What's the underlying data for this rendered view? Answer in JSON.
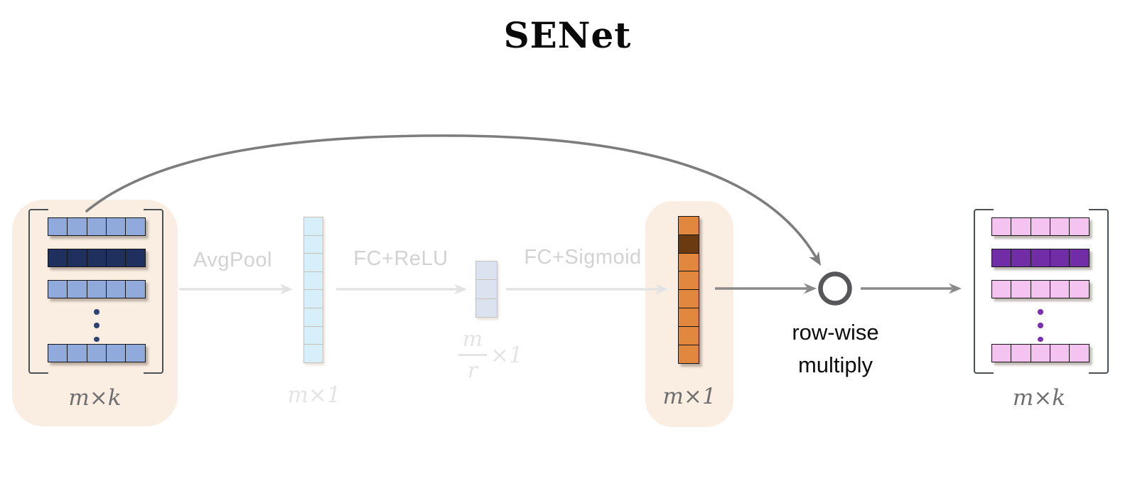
{
  "title": "SENet",
  "labels": {
    "avgpool": "AvgPool",
    "fc_relu": "FC+ReLU",
    "fc_sigmoid": "FC+Sigmoid",
    "input_dims": "m×k",
    "pooled_dims": "m×1",
    "bottleneck_numerator": "m",
    "bottleneck_denominator": "r",
    "bottleneck_suffix": "×1",
    "attention_dims": "m×1",
    "output_dims": "m×k",
    "multiply_line1": "row-wise",
    "multiply_line2": "multiply"
  },
  "colors": {
    "highlight_bg": "#faeee2",
    "input_row_light": "#91aadc",
    "input_row_dark": "#1f305f",
    "input_dots": "#2e4372",
    "pooled_cell": "#d6effa",
    "bottleneck_cell": "#dbe3f1",
    "attention_cell": "#e1873e",
    "attention_cell_dark": "#6b3a10",
    "output_row_light": "#f4c3f0",
    "output_row_dark": "#702da5",
    "output_dots": "#7b30ad",
    "active_arrow": "#8a8a8a",
    "skip_arrow": "#7d7d7d",
    "node_ring": "#57575a",
    "node_fill": "#ffffff",
    "faded_arrow": "#e2e2e2",
    "faded_text": "#d2d2d2",
    "faded_dim_label": "#e4e4e4",
    "dim_label": "#6f6f6f",
    "bracket": "#4b5055"
  },
  "input_matrix": {
    "rows": [
      "light",
      "dark",
      "light",
      "dots",
      "light"
    ],
    "cols": 5,
    "palette": {
      "light": "input_row_light",
      "dark": "input_row_dark",
      "dots": "input_dots"
    }
  },
  "output_matrix": {
    "rows": [
      "light",
      "dark",
      "light",
      "dots",
      "light"
    ],
    "cols": 5,
    "palette": {
      "light": "output_row_light",
      "dark": "output_row_dark",
      "dots": "output_dots"
    }
  },
  "pooled_vector": {
    "cells": 8,
    "cell_color": "pooled_cell"
  },
  "bottleneck_vector": {
    "cells": 3,
    "cell_color": "bottleneck_cell"
  },
  "attention_vector": {
    "cells": 8,
    "cell_color": "attention_cell",
    "dark_index": 1,
    "dark_color": "attention_cell_dark"
  }
}
